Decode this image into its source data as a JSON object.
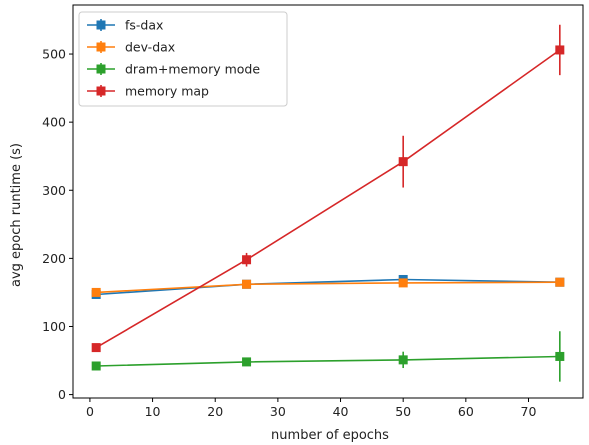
{
  "chart_data": {
    "type": "line",
    "title": "",
    "xlabel": "number of epochs",
    "ylabel": "avg epoch runtime (s)",
    "xlim": [
      -2.7,
      78.7
    ],
    "ylim": [
      -5,
      572
    ],
    "xticks": [
      0,
      10,
      20,
      30,
      40,
      50,
      60,
      70
    ],
    "yticks": [
      0,
      100,
      200,
      300,
      400,
      500
    ],
    "grid": false,
    "legend_position": "top-left",
    "series": [
      {
        "name": "fs-dax",
        "color": "#1f77b4",
        "points": [
          {
            "x": 1,
            "y": 147,
            "err": 3
          },
          {
            "x": 25,
            "y": 162,
            "err": 3
          },
          {
            "x": 50,
            "y": 169,
            "err": 3
          },
          {
            "x": 75,
            "y": 165,
            "err": 3
          }
        ]
      },
      {
        "name": "dev-dax",
        "color": "#ff7f0e",
        "points": [
          {
            "x": 1,
            "y": 150,
            "err": 3
          },
          {
            "x": 25,
            "y": 162,
            "err": 3
          },
          {
            "x": 50,
            "y": 164,
            "err": 3
          },
          {
            "x": 75,
            "y": 165,
            "err": 3
          }
        ]
      },
      {
        "name": "dram+memory mode",
        "color": "#2ca02c",
        "points": [
          {
            "x": 1,
            "y": 42,
            "err": 3
          },
          {
            "x": 25,
            "y": 48,
            "err": 3
          },
          {
            "x": 50,
            "y": 51,
            "err": 12
          },
          {
            "x": 75,
            "y": 56,
            "err": 37
          }
        ]
      },
      {
        "name": "memory map",
        "color": "#d62728",
        "points": [
          {
            "x": 1,
            "y": 69,
            "err": 5
          },
          {
            "x": 25,
            "y": 198,
            "err": 10
          },
          {
            "x": 50,
            "y": 342,
            "err": 38
          },
          {
            "x": 75,
            "y": 506,
            "err": 37
          }
        ]
      }
    ]
  }
}
